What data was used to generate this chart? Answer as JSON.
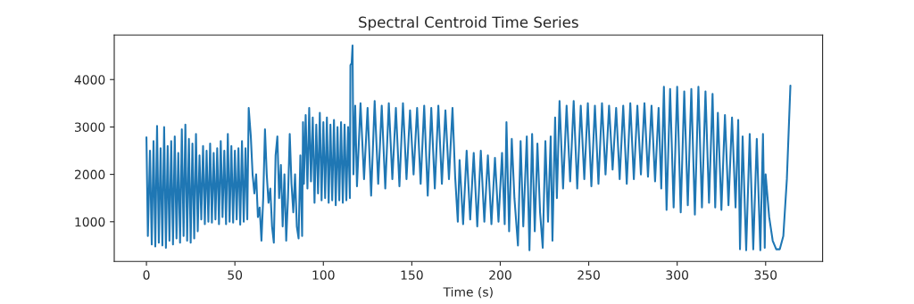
{
  "chart_data": {
    "type": "line",
    "title": "Spectral Centroid Time Series",
    "xlabel": "Time (s)",
    "x": [
      0,
      0.8,
      2,
      3,
      4,
      5,
      6,
      7,
      8,
      9,
      10,
      11,
      12,
      13,
      14,
      15,
      16,
      17,
      18,
      19,
      20,
      21,
      22,
      23,
      24,
      25,
      26,
      27,
      28,
      29,
      30,
      31,
      32,
      33,
      34,
      35,
      36,
      37,
      38,
      39,
      40,
      41,
      42,
      43,
      44,
      45,
      46,
      47,
      48,
      49,
      50,
      51,
      52,
      53,
      54,
      55,
      56,
      57,
      57.8,
      59,
      60,
      61,
      62,
      63,
      64,
      65,
      66,
      67,
      68,
      69,
      70,
      71,
      72,
      73,
      74,
      75,
      76,
      77,
      78,
      79,
      80,
      81,
      82,
      83,
      84,
      85,
      86,
      87,
      88,
      88.5,
      89,
      90,
      91,
      92,
      93,
      94,
      95,
      96,
      97,
      98,
      99,
      100,
      101,
      102,
      103,
      104,
      105,
      106,
      107,
      108,
      109,
      110,
      111,
      112,
      113,
      114,
      115,
      115.3,
      116,
      116.5,
      117,
      118,
      119,
      121,
      123,
      125,
      127,
      129,
      131,
      133,
      135,
      137,
      139,
      141,
      143,
      145,
      147,
      149,
      151,
      153,
      155,
      157,
      159,
      161,
      163,
      165,
      167,
      169,
      171,
      173,
      174.5,
      176,
      177,
      179,
      181,
      183,
      185,
      187,
      189,
      191,
      193,
      195,
      197,
      199,
      201,
      202.5,
      203.5,
      205,
      206.5,
      208,
      210,
      211.5,
      213,
      215,
      216.5,
      218,
      219.5,
      221,
      222.5,
      224,
      225.5,
      227,
      228.5,
      229.5,
      231,
      232,
      233.5,
      235.5,
      237.5,
      239.5,
      241.5,
      243.5,
      245.5,
      247.5,
      249.5,
      251.5,
      253.5,
      255.5,
      257.5,
      259.5,
      261.5,
      263.5,
      265.5,
      267.5,
      269.5,
      271.5,
      273.5,
      275.5,
      277.5,
      279.5,
      281.5,
      283.5,
      285.5,
      287.5,
      289.5,
      291,
      292.5,
      294,
      296,
      298,
      300,
      302,
      304,
      306,
      308,
      310,
      312,
      314,
      316,
      318,
      320,
      321.5,
      323,
      325,
      327,
      329,
      331,
      333,
      334.5,
      335.5,
      337,
      339,
      341,
      343,
      345,
      347,
      348.5,
      349.5,
      350,
      352,
      354,
      356,
      358,
      360,
      362,
      364
    ],
    "series": [
      {
        "color": "#1f77b4",
        "values": [
          2780,
          700,
          2500,
          520,
          2700,
          480,
          3020,
          560,
          2550,
          500,
          3000,
          450,
          2600,
          600,
          2700,
          520,
          2800,
          650,
          2450,
          560,
          2950,
          700,
          3050,
          600,
          2750,
          560,
          2650,
          650,
          2850,
          800,
          2400,
          1050,
          2600,
          950,
          2500,
          1000,
          2650,
          980,
          2450,
          1050,
          2550,
          950,
          2700,
          1100,
          2500,
          950,
          2850,
          1000,
          2600,
          980,
          2500,
          1050,
          2550,
          940,
          2700,
          1000,
          2550,
          1050,
          3400,
          2800,
          2000,
          1600,
          2000,
          1100,
          1300,
          600,
          1500,
          2950,
          2000,
          1400,
          1700,
          900,
          560,
          2400,
          2800,
          1500,
          2200,
          900,
          2000,
          600,
          1500,
          2850,
          1800,
          1200,
          2000,
          900,
          650,
          2400,
          700,
          3100,
          1800,
          3250,
          1700,
          3400,
          1850,
          3200,
          1400,
          3050,
          1600,
          3300,
          1450,
          3100,
          1500,
          3200,
          1400,
          3050,
          1450,
          3150,
          1350,
          3000,
          1450,
          3100,
          1400,
          3050,
          1450,
          3000,
          1500,
          4300,
          4350,
          4720,
          2000,
          3450,
          1750,
          3500,
          1900,
          3400,
          1550,
          3550,
          1800,
          3450,
          1700,
          3500,
          1900,
          3400,
          1750,
          3500,
          1900,
          3350,
          2000,
          3400,
          1800,
          3450,
          1550,
          3400,
          1700,
          3450,
          1800,
          3350,
          1900,
          3400,
          1950,
          1000,
          2300,
          950,
          2500,
          1050,
          2450,
          900,
          2500,
          1000,
          2400,
          950,
          2350,
          1000,
          2450,
          950,
          3100,
          800,
          2750,
          1500,
          500,
          2700,
          900,
          2800,
          400,
          2850,
          800,
          2650,
          1200,
          450,
          2700,
          1000,
          2800,
          600,
          3200,
          1500,
          3550,
          1700,
          3450,
          1850,
          3550,
          1700,
          3450,
          1900,
          3500,
          1750,
          3450,
          1800,
          3500,
          2000,
          3450,
          2100,
          3400,
          1900,
          3450,
          1800,
          3500,
          1900,
          3450,
          2000,
          3500,
          1950,
          3450,
          1850,
          3400,
          1700,
          3850,
          1250,
          3800,
          1300,
          3850,
          1200,
          3750,
          1350,
          3800,
          1150,
          3850,
          1300,
          3750,
          1400,
          3700,
          1300,
          3300,
          1250,
          3250,
          1350,
          3200,
          1300,
          3150,
          420,
          2800,
          400,
          2850,
          420,
          2750,
          400,
          2850,
          450,
          2000,
          1100,
          600,
          420,
          420,
          700,
          1900,
          3870
        ]
      }
    ],
    "xlim": [
      -18.2,
      382.2
    ],
    "ylim": [
      163,
      4941
    ],
    "xticks": [
      0,
      50,
      100,
      150,
      200,
      250,
      300,
      350
    ],
    "yticks": [
      1000,
      2000,
      3000,
      4000
    ],
    "grid": false,
    "legend": false
  }
}
